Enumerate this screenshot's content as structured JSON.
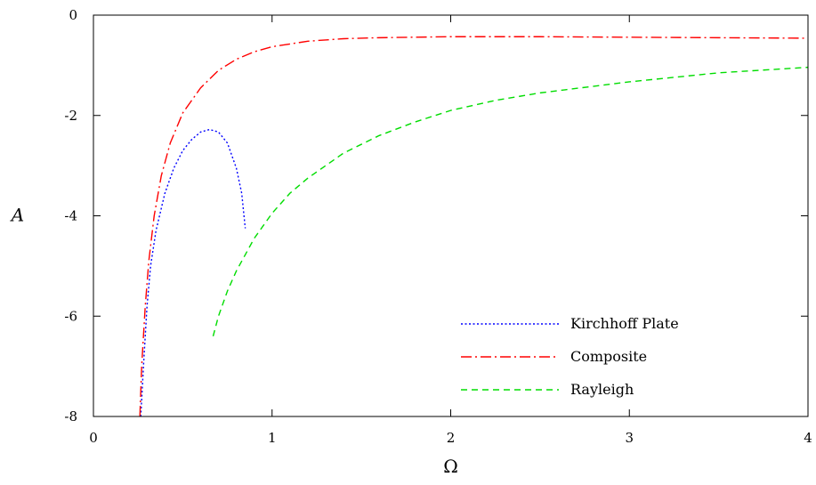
{
  "chart_data": {
    "type": "line",
    "xlabel": "Ω",
    "ylabel": "A",
    "xlim": [
      0,
      4
    ],
    "ylim": [
      -8,
      0
    ],
    "x_ticks": [
      "0",
      "1",
      "2",
      "3",
      "4"
    ],
    "y_ticks": [
      "0",
      "-2",
      "-4",
      "-6",
      "-8"
    ],
    "grid": false,
    "legend_position": "bottom-right",
    "series": [
      {
        "name": "Kirchhoff Plate",
        "color": "#0000ff",
        "dash": "dotted",
        "x": [
          0.265,
          0.28,
          0.3,
          0.32,
          0.35,
          0.4,
          0.45,
          0.5,
          0.55,
          0.6,
          0.65,
          0.7,
          0.75,
          0.8,
          0.83,
          0.85
        ],
        "y": [
          -8.0,
          -7.0,
          -5.8,
          -5.0,
          -4.3,
          -3.55,
          -3.05,
          -2.7,
          -2.48,
          -2.33,
          -2.28,
          -2.33,
          -2.55,
          -3.05,
          -3.55,
          -4.25
        ]
      },
      {
        "name": "Composite",
        "color": "#ff0000",
        "dash": "dashdot",
        "x": [
          0.26,
          0.27,
          0.29,
          0.31,
          0.34,
          0.38,
          0.43,
          0.5,
          0.6,
          0.7,
          0.8,
          0.9,
          1.0,
          1.2,
          1.4,
          1.6,
          1.8,
          2.0,
          2.2,
          2.5,
          3.0,
          3.5,
          4.0
        ],
        "y": [
          -8.0,
          -7.0,
          -5.8,
          -4.9,
          -4.0,
          -3.2,
          -2.55,
          -1.95,
          -1.45,
          -1.1,
          -0.88,
          -0.73,
          -0.63,
          -0.52,
          -0.47,
          -0.45,
          -0.44,
          -0.43,
          -0.43,
          -0.43,
          -0.44,
          -0.45,
          -0.46
        ]
      },
      {
        "name": "Rayleigh",
        "color": "#00dd00",
        "dash": "dashed",
        "x": [
          0.67,
          0.7,
          0.75,
          0.8,
          0.9,
          1.0,
          1.1,
          1.2,
          1.4,
          1.6,
          1.8,
          2.0,
          2.25,
          2.5,
          3.0,
          3.5,
          4.0
        ],
        "y": [
          -6.4,
          -6.0,
          -5.5,
          -5.1,
          -4.45,
          -3.95,
          -3.55,
          -3.25,
          -2.75,
          -2.4,
          -2.13,
          -1.9,
          -1.7,
          -1.55,
          -1.33,
          -1.15,
          -1.04
        ]
      }
    ]
  }
}
